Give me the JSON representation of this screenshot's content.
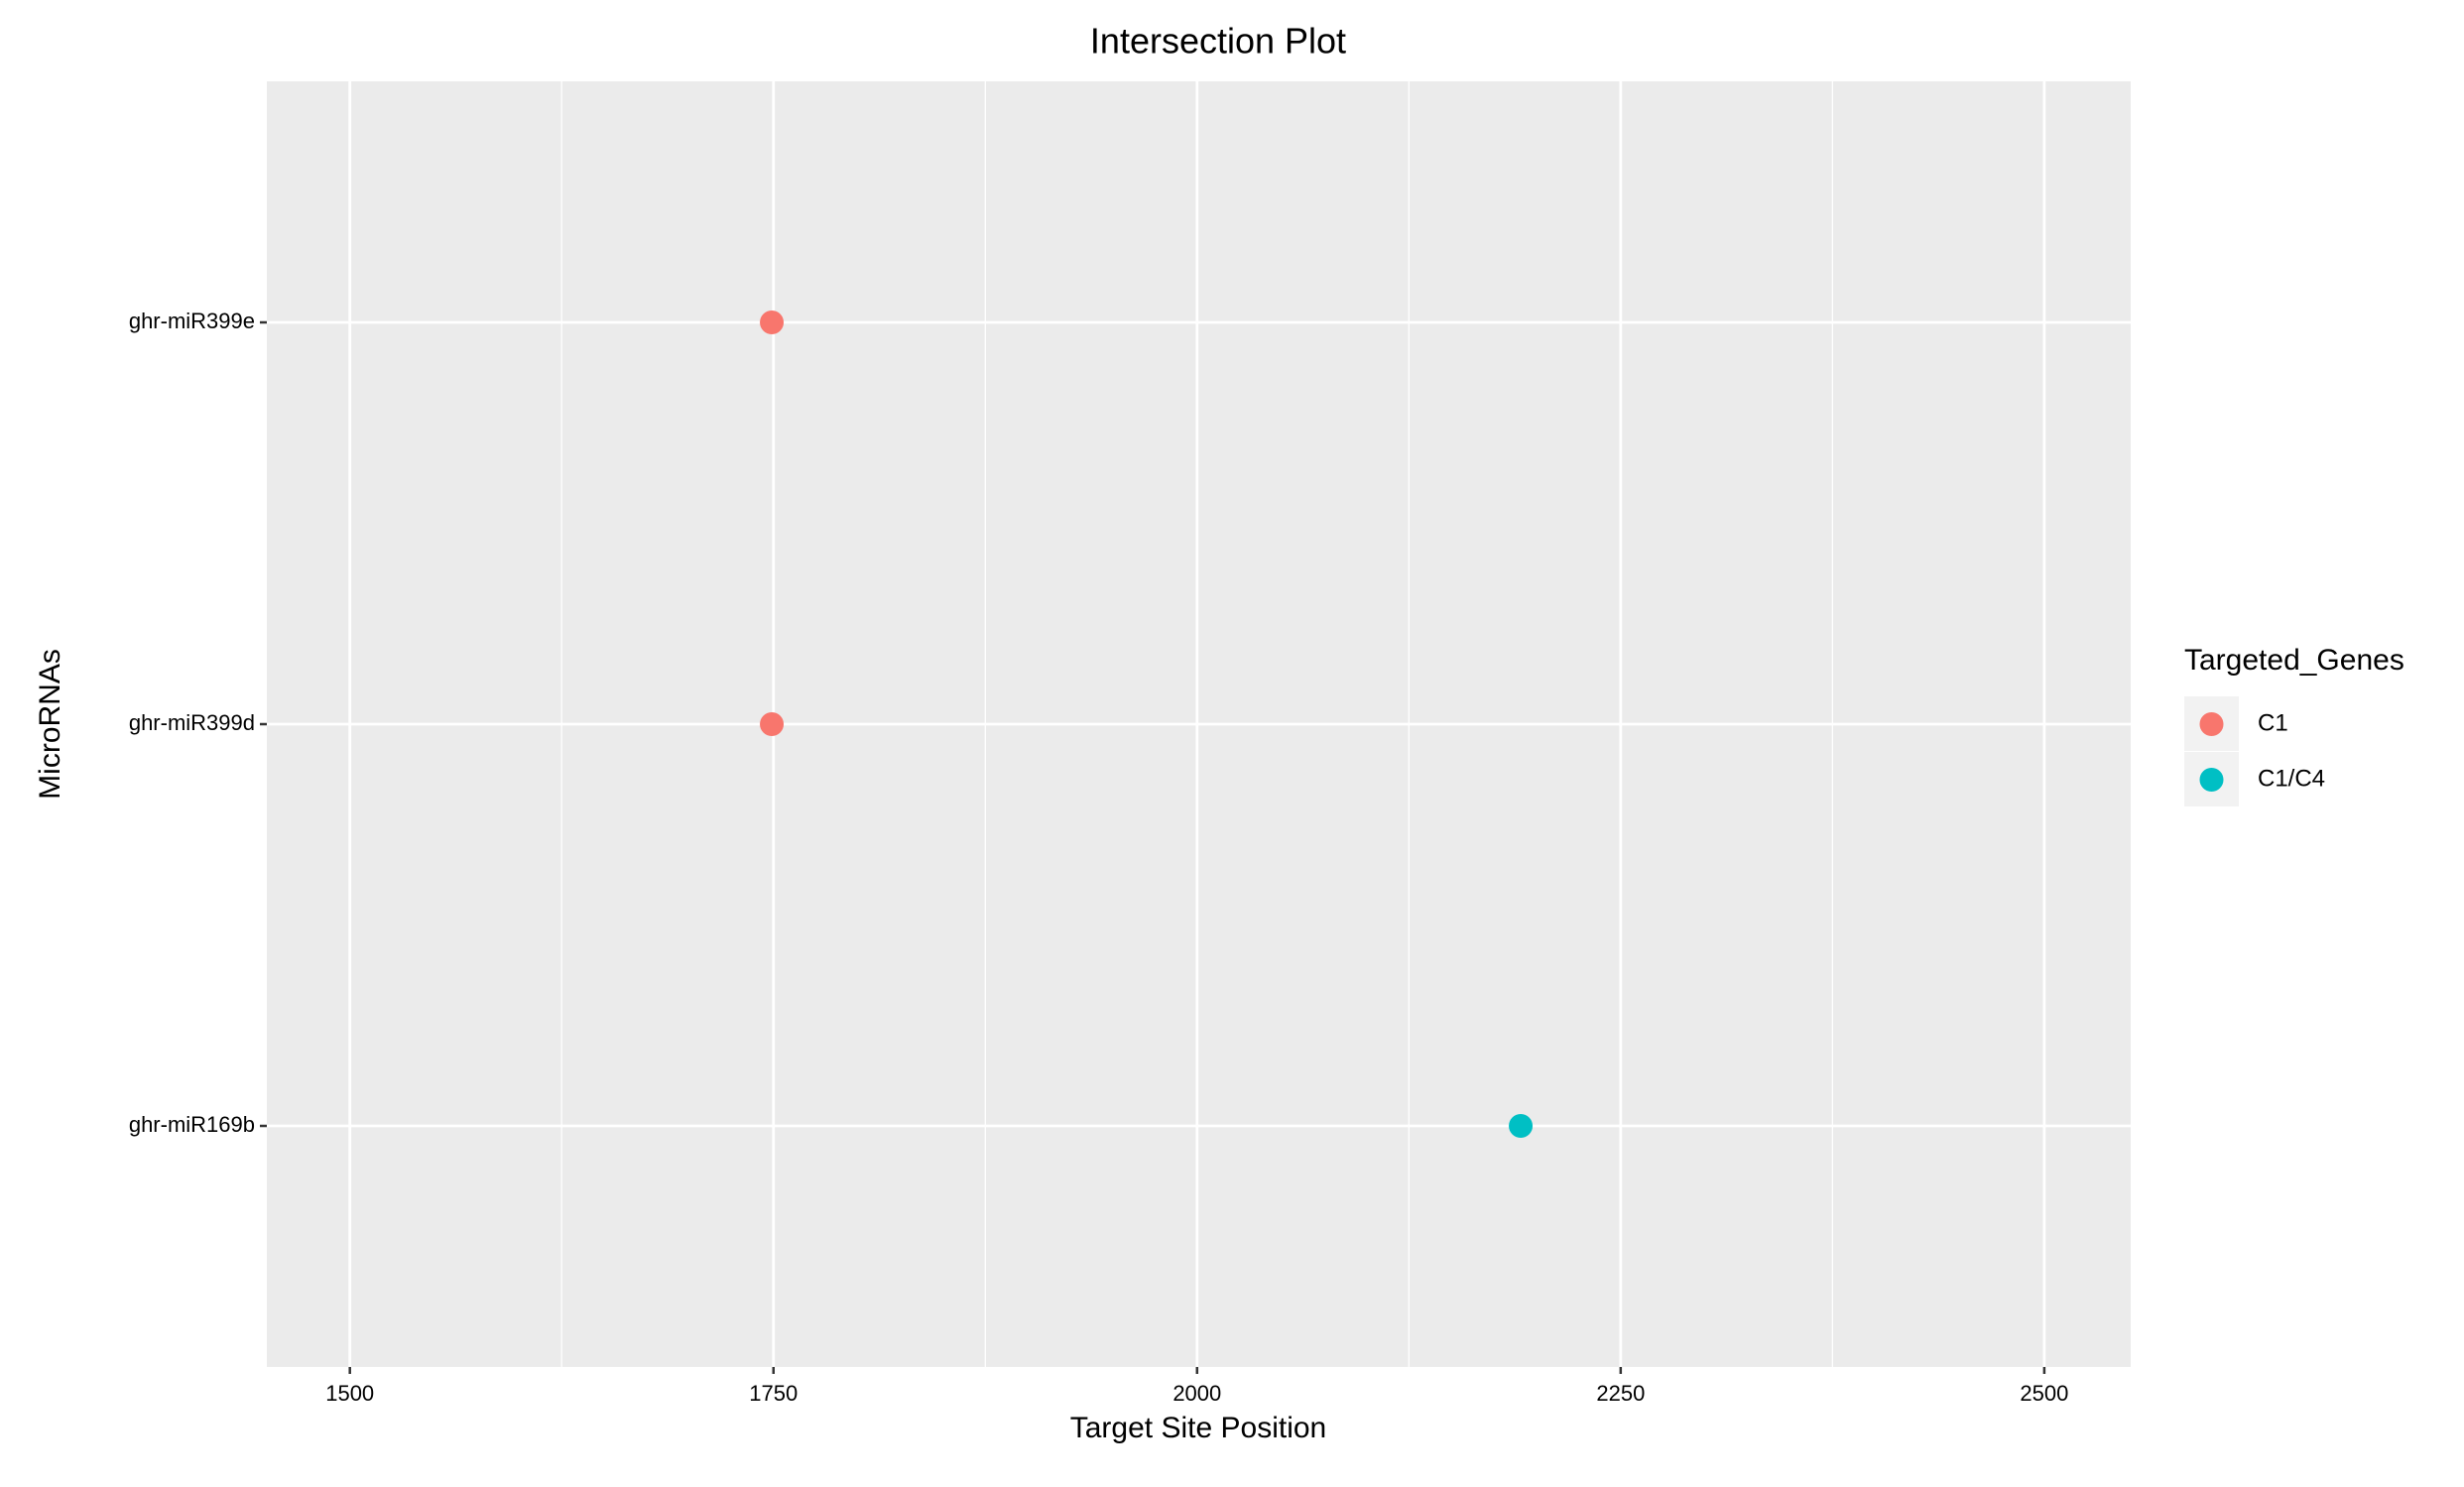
{
  "chart_data": {
    "type": "scatter",
    "title": "Intersection Plot",
    "x_label": "Target Site Position",
    "y_label": "MicroRNAs",
    "categories": [
      "ghr-miR169b",
      "ghr-miR399d",
      "ghr-miR399e"
    ],
    "series": [
      {
        "name": "C1",
        "color": "#F8766D",
        "x": [
          1749,
          1749
        ],
        "values": [
          "ghr-miR399d",
          "ghr-miR399e"
        ]
      },
      {
        "name": "C1/C4",
        "color": "#00BFC4",
        "x": [
          2191
        ],
        "values": [
          "ghr-miR169b"
        ]
      }
    ],
    "xlim": [
      1451,
      2551
    ],
    "xticks": [
      1500,
      1750,
      2000,
      2250,
      2500
    ],
    "grid": true,
    "legend_title": "Targeted_Genes",
    "legend_position": "right"
  }
}
